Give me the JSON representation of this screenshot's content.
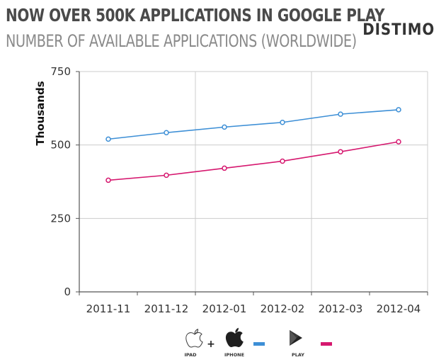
{
  "header": {
    "title": "NOW OVER 500K APPLICATIONS IN GOOGLE PLAY",
    "subtitle": "NUMBER OF AVAILABLE APPLICATIONS (WORLDWIDE)",
    "brand": "DISTIMO"
  },
  "legend": {
    "ipad_label": "IPAD",
    "iphone_label": "IPHONE",
    "play_label": "PLAY",
    "plus": "+"
  },
  "colors": {
    "ios": "#3d8fd6",
    "play": "#d6186f",
    "grid": "#cccccc",
    "axis": "#555555"
  },
  "chart_data": {
    "type": "line",
    "title": "NOW OVER 500K APPLICATIONS IN GOOGLE PLAY",
    "subtitle": "NUMBER OF AVAILABLE APPLICATIONS (WORLDWIDE)",
    "xlabel": "",
    "ylabel": "Thousands",
    "categories": [
      "2011-11",
      "2011-12",
      "2012-01",
      "2012-02",
      "2012-03",
      "2012-04"
    ],
    "ylim": [
      0,
      750
    ],
    "yticks": [
      0,
      250,
      500,
      750
    ],
    "grid": true,
    "legend_position": "bottom",
    "series": [
      {
        "name": "IPAD + IPHONE",
        "color": "#3d8fd6",
        "values": [
          520,
          542,
          561,
          577,
          605,
          620
        ]
      },
      {
        "name": "PLAY",
        "color": "#d6186f",
        "values": [
          380,
          397,
          421,
          445,
          477,
          511
        ]
      }
    ]
  }
}
